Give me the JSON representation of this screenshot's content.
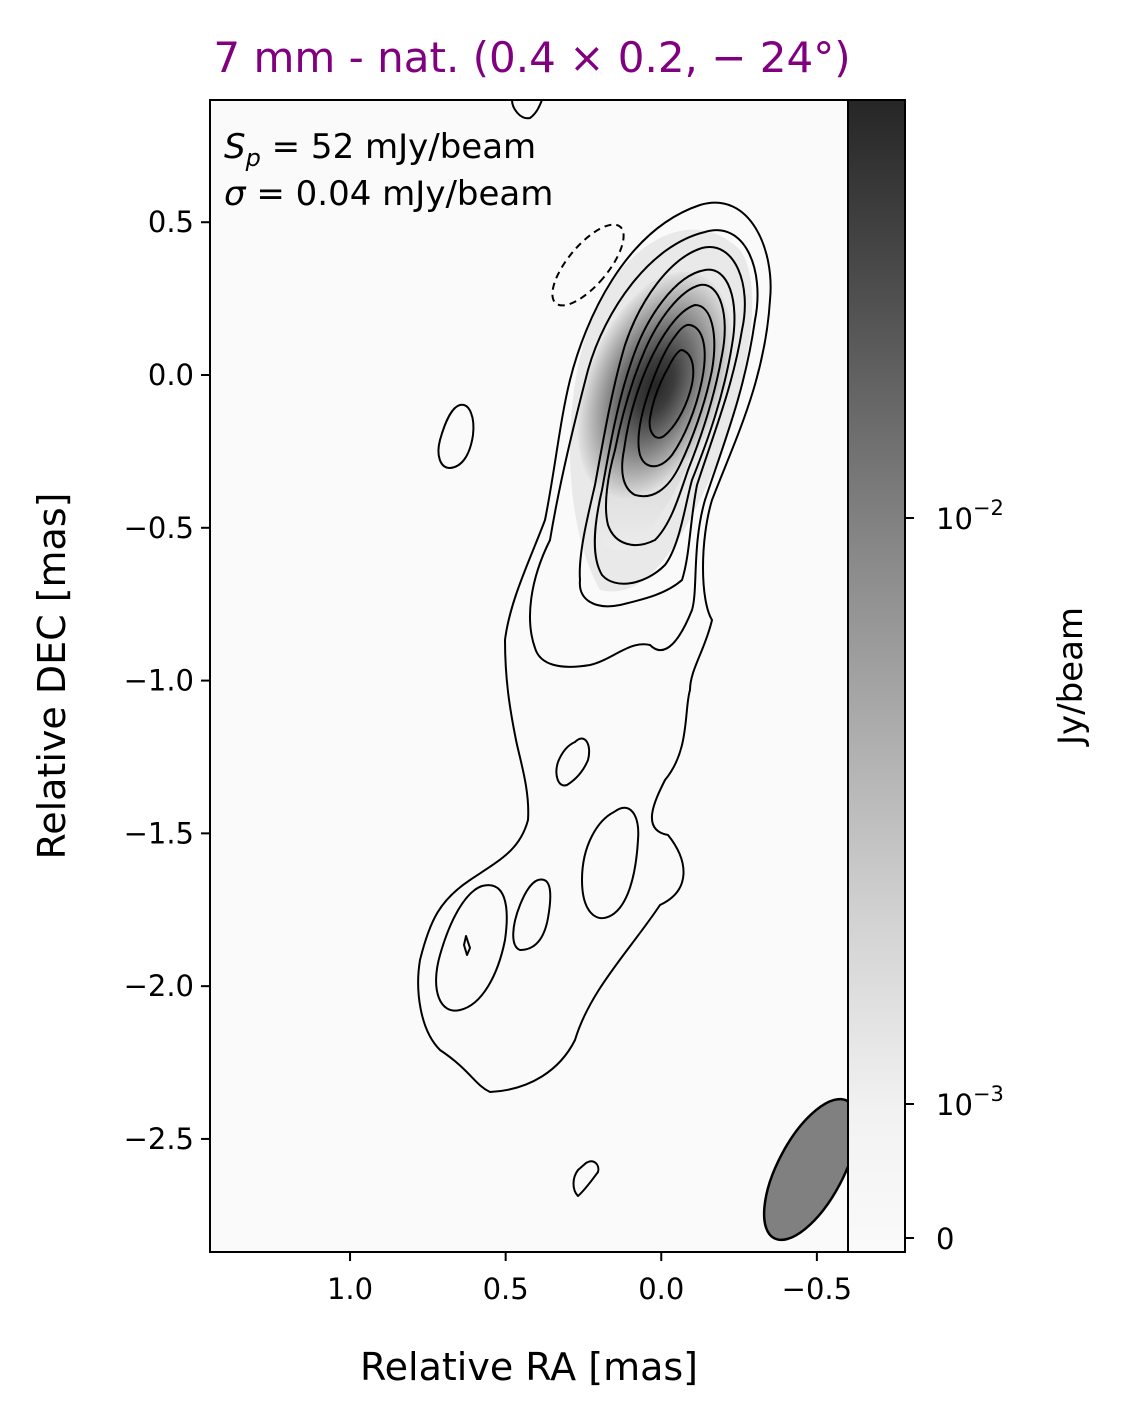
{
  "chart_data": {
    "type": "heatmap",
    "title": "7 mm - nat. (0.4 × 0.2, − 24°)",
    "xlabel": "Relative RA [mas]",
    "ylabel": "Relative DEC [mas]",
    "colorbar_label": "Jy/beam",
    "xlim": [
      1.45,
      -0.6
    ],
    "ylim": [
      -2.87,
      0.9
    ],
    "x_ticks": [
      "1.0",
      "0.5",
      "0.0",
      "−0.5"
    ],
    "x_tick_values": [
      1.0,
      0.5,
      0.0,
      -0.5
    ],
    "y_ticks": [
      "0.5",
      "0.0",
      "−0.5",
      "−1.0",
      "−1.5",
      "−2.0",
      "−2.5"
    ],
    "y_tick_values": [
      0.5,
      0.0,
      -0.5,
      -1.0,
      -1.5,
      -2.0,
      -2.5
    ],
    "colorbar_ticks": [
      {
        "base": "10",
        "exp": "−2",
        "value": 0.01
      },
      {
        "base": "10",
        "exp": "−3",
        "value": 0.001
      },
      {
        "base": "0",
        "exp": "",
        "value": 0
      }
    ],
    "colormap": "gray_r",
    "contour_color": "#000000",
    "title_color": "#800080",
    "beam": {
      "major_mas": 0.4,
      "minor_mas": 0.2,
      "pa_deg": -24,
      "center": [
        -0.48,
        -2.6
      ],
      "fill": "#808080"
    },
    "annotations": [
      {
        "symbol": "S",
        "subscript": "p",
        "text": " = 52 mJy/beam"
      },
      {
        "symbol": "σ",
        "subscript": "",
        "text": " = 0.04 mJy/beam"
      }
    ],
    "peak_position": [
      0.02,
      -0.02
    ],
    "grid": false
  }
}
